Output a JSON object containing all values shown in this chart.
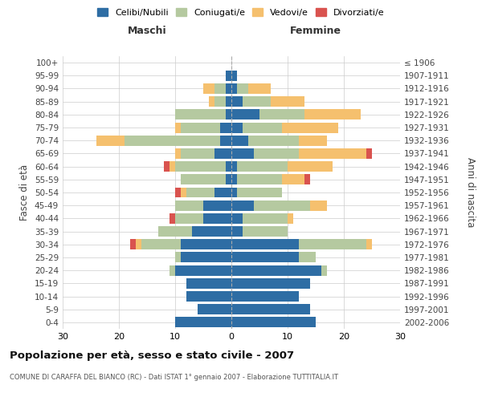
{
  "age_groups": [
    "0-4",
    "5-9",
    "10-14",
    "15-19",
    "20-24",
    "25-29",
    "30-34",
    "35-39",
    "40-44",
    "45-49",
    "50-54",
    "55-59",
    "60-64",
    "65-69",
    "70-74",
    "75-79",
    "80-84",
    "85-89",
    "90-94",
    "95-99",
    "100+"
  ],
  "birth_years": [
    "2002-2006",
    "1997-2001",
    "1992-1996",
    "1987-1991",
    "1982-1986",
    "1977-1981",
    "1972-1976",
    "1967-1971",
    "1962-1966",
    "1957-1961",
    "1952-1956",
    "1947-1951",
    "1942-1946",
    "1937-1941",
    "1932-1936",
    "1927-1931",
    "1922-1926",
    "1917-1921",
    "1912-1916",
    "1907-1911",
    "≤ 1906"
  ],
  "maschi": {
    "celibe": [
      10,
      6,
      8,
      8,
      10,
      9,
      9,
      7,
      5,
      5,
      3,
      1,
      1,
      3,
      2,
      2,
      1,
      1,
      1,
      1,
      0
    ],
    "coniugato": [
      0,
      0,
      0,
      0,
      1,
      1,
      7,
      6,
      5,
      5,
      5,
      8,
      9,
      6,
      17,
      7,
      9,
      2,
      2,
      0,
      0
    ],
    "vedovo": [
      0,
      0,
      0,
      0,
      0,
      0,
      1,
      0,
      0,
      0,
      1,
      0,
      1,
      1,
      5,
      1,
      0,
      1,
      2,
      0,
      0
    ],
    "divorziato": [
      0,
      0,
      0,
      0,
      0,
      0,
      1,
      0,
      1,
      0,
      1,
      0,
      1,
      0,
      0,
      0,
      0,
      0,
      0,
      0,
      0
    ]
  },
  "femmine": {
    "nubile": [
      15,
      14,
      12,
      14,
      16,
      12,
      12,
      2,
      2,
      4,
      1,
      1,
      1,
      4,
      3,
      2,
      5,
      2,
      1,
      1,
      0
    ],
    "coniugata": [
      0,
      0,
      0,
      0,
      1,
      3,
      12,
      8,
      8,
      10,
      8,
      8,
      9,
      8,
      9,
      7,
      8,
      5,
      2,
      0,
      0
    ],
    "vedova": [
      0,
      0,
      0,
      0,
      0,
      0,
      1,
      0,
      1,
      3,
      0,
      4,
      8,
      12,
      5,
      10,
      10,
      6,
      4,
      0,
      0
    ],
    "divorziata": [
      0,
      0,
      0,
      0,
      0,
      0,
      0,
      0,
      0,
      0,
      0,
      1,
      0,
      1,
      0,
      0,
      0,
      0,
      0,
      0,
      0
    ]
  },
  "colors": {
    "celibe": "#2e6da4",
    "coniugato": "#b5c9a0",
    "vedovo": "#f5c06e",
    "divorziato": "#d9534f"
  },
  "xlim": 30,
  "title": "Popolazione per età, sesso e stato civile - 2007",
  "subtitle": "COMUNE DI CARAFFA DEL BIANCO (RC) - Dati ISTAT 1° gennaio 2007 - Elaborazione TUTTITALIA.IT",
  "ylabel_left": "Fasce di età",
  "ylabel_right": "Anni di nascita",
  "label_maschi": "Maschi",
  "label_femmine": "Femmine",
  "legend": [
    "Celibi/Nubili",
    "Coniugati/e",
    "Vedovi/e",
    "Divorziati/e"
  ],
  "xticks": [
    30,
    20,
    10,
    0,
    10,
    20,
    30
  ],
  "bg_color": "#ffffff",
  "grid_color": "#cccccc"
}
